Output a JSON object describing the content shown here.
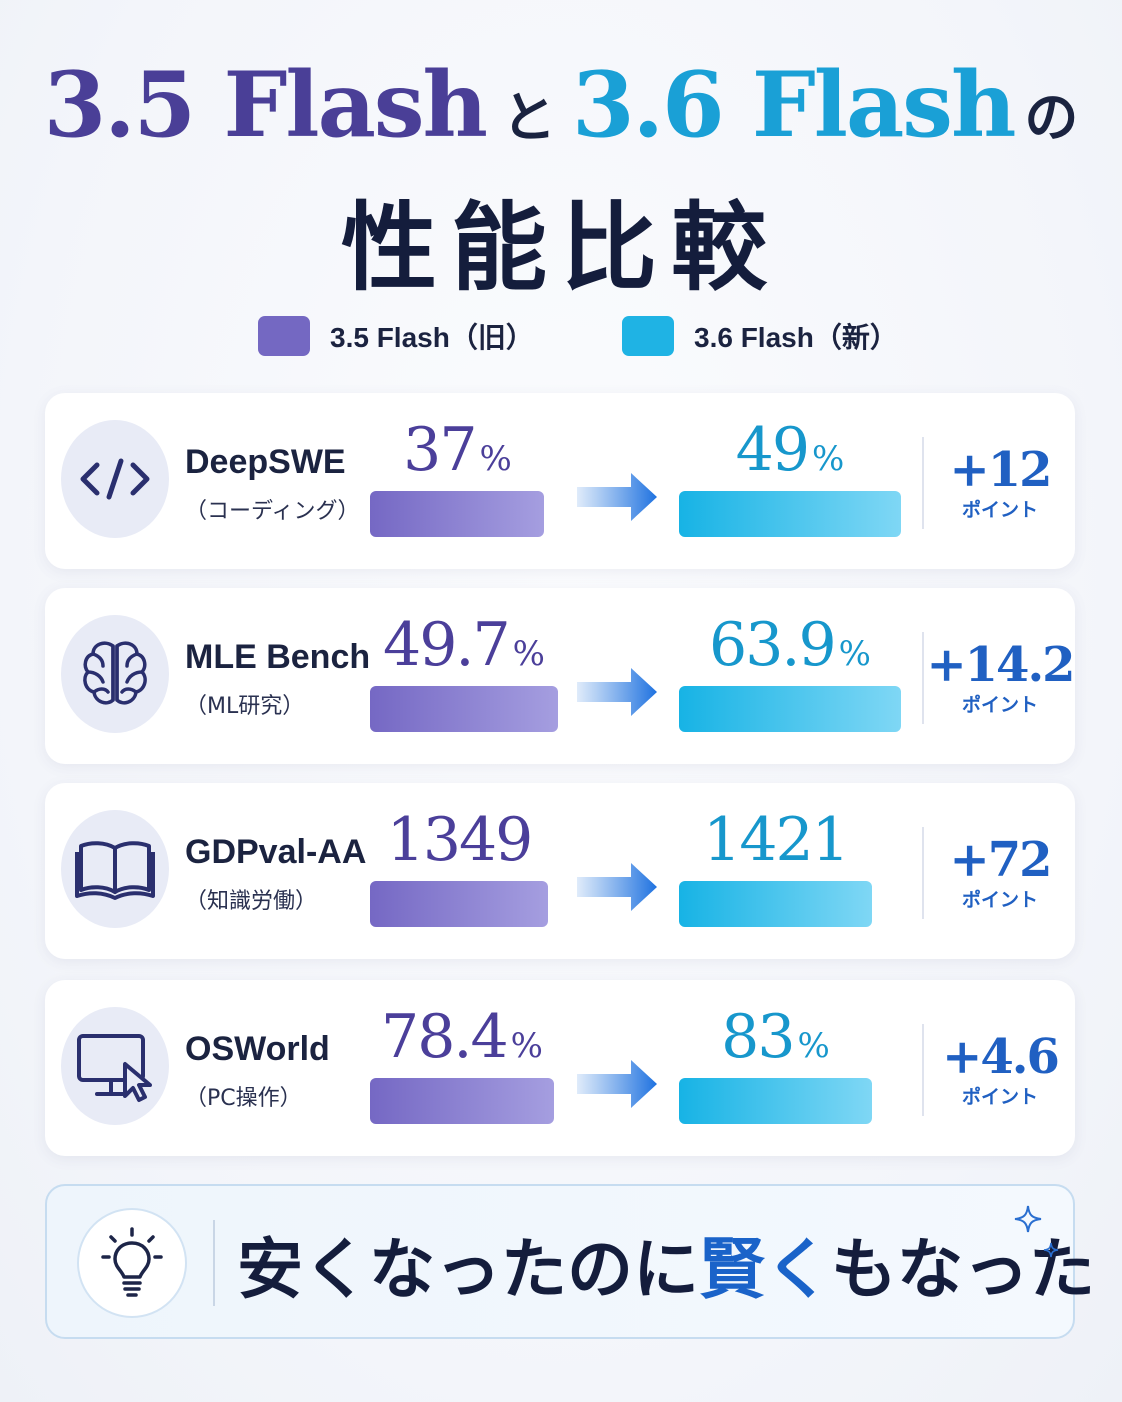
{
  "title": {
    "old_name": "3.5 Flash",
    "connector": "と",
    "new_name": "3.6 Flash",
    "suffix": "の",
    "main": "性能比較"
  },
  "legend": [
    {
      "label": "3.5 Flash（旧）",
      "color": "#7468c2"
    },
    {
      "label": "3.6 Flash（新）",
      "color": "#1fb3e4"
    }
  ],
  "chart_data": {
    "type": "bar",
    "series": [
      {
        "name": "3.5 Flash（旧）",
        "values": [
          37,
          49.7,
          1349,
          78.4
        ],
        "color": "#7468c2"
      },
      {
        "name": "3.6 Flash（新）",
        "values": [
          49,
          63.9,
          1421,
          83
        ],
        "color": "#1fb3e4"
      }
    ],
    "categories": [
      "DeepSWE",
      "MLE Bench",
      "GDPval-AA",
      "OSWorld"
    ],
    "rows": [
      {
        "name": "DeepSWE",
        "subtitle": "（コーディング）",
        "icon": "code-icon",
        "old": 37,
        "old_text": "37",
        "new": 49,
        "new_text": "49",
        "unit": "%",
        "delta": "+12",
        "delta_unit": "ポイント"
      },
      {
        "name": "MLE Bench",
        "subtitle": "（ML研究）",
        "icon": "brain-icon",
        "old": 49.7,
        "old_text": "49.7",
        "new": 63.9,
        "new_text": "63.9",
        "unit": "%",
        "delta": "+14.2",
        "delta_unit": "ポイント"
      },
      {
        "name": "GDPval-AA",
        "subtitle": "（知識労働）",
        "icon": "book-icon",
        "old": 1349,
        "old_text": "1349",
        "new": 1421,
        "new_text": "1421",
        "unit": "",
        "delta": "+72",
        "delta_unit": "ポイント"
      },
      {
        "name": "OSWorld",
        "subtitle": "（PC操作）",
        "icon": "monitor-cursor-icon",
        "old": 78.4,
        "old_text": "78.4",
        "new": 83,
        "new_text": "83",
        "unit": "%",
        "delta": "+4.6",
        "delta_unit": "ポイント"
      }
    ]
  },
  "tagline": {
    "part1": "安くなったのに",
    "highlight": "賢く",
    "part2": "もなった",
    "icon": "lightbulb-icon"
  },
  "colors": {
    "old": "#4a3f97",
    "new": "#1aa0d6",
    "delta": "#2060c2",
    "heading": "#141d3c"
  }
}
